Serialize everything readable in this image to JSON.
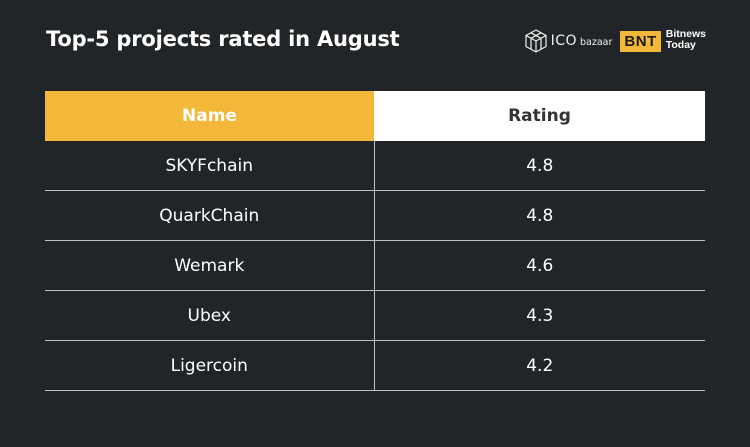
{
  "title": "Top-5 projects rated in August",
  "logos": {
    "ico_text": "ICO",
    "ico_sub": "bazaar",
    "bnt_badge": "BNT",
    "bnt_line1": "Bitnews",
    "bnt_line2": "Today"
  },
  "colors": {
    "background": "#222527",
    "accent": "#f3b73a",
    "header_light": "#ffffff",
    "divider": "#bfc2c5"
  },
  "chart_data": {
    "type": "table",
    "title": "Top-5 projects rated in August",
    "columns": [
      "Name",
      "Rating"
    ],
    "rows": [
      [
        "SKYFchain",
        "4.8"
      ],
      [
        "QuarkChain",
        "4.8"
      ],
      [
        "Wemark",
        "4.6"
      ],
      [
        "Ubex",
        "4.3"
      ],
      [
        "Ligercoin",
        "4.2"
      ]
    ]
  }
}
